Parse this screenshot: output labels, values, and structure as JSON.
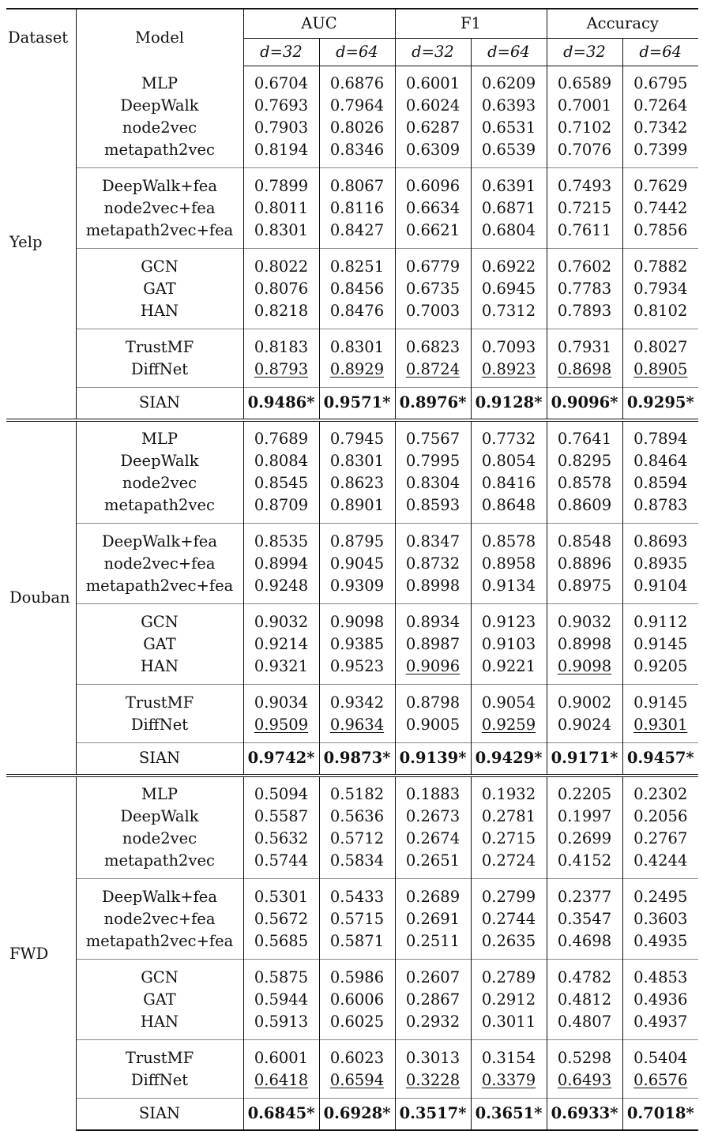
{
  "header": {
    "dataset": "Dataset",
    "model": "Model",
    "metrics": [
      "AUC",
      "F1",
      "Accuracy"
    ],
    "dims": [
      "d=32",
      "d=64",
      "d=32",
      "d=64",
      "d=32",
      "d=64"
    ]
  },
  "datasets": [
    {
      "name": "Yelp",
      "groups": [
        [
          {
            "model": "MLP",
            "values": [
              "0.6704",
              "0.6876",
              "0.6001",
              "0.6209",
              "0.6589",
              "0.6795"
            ],
            "underline": [
              false,
              false,
              false,
              false,
              false,
              false
            ]
          },
          {
            "model": "DeepWalk",
            "values": [
              "0.7693",
              "0.7964",
              "0.6024",
              "0.6393",
              "0.7001",
              "0.7264"
            ],
            "underline": [
              false,
              false,
              false,
              false,
              false,
              false
            ]
          },
          {
            "model": "node2vec",
            "values": [
              "0.7903",
              "0.8026",
              "0.6287",
              "0.6531",
              "0.7102",
              "0.7342"
            ],
            "underline": [
              false,
              false,
              false,
              false,
              false,
              false
            ]
          },
          {
            "model": "metapath2vec",
            "values": [
              "0.8194",
              "0.8346",
              "0.6309",
              "0.6539",
              "0.7076",
              "0.7399"
            ],
            "underline": [
              false,
              false,
              false,
              false,
              false,
              false
            ]
          }
        ],
        [
          {
            "model": "DeepWalk+fea",
            "values": [
              "0.7899",
              "0.8067",
              "0.6096",
              "0.6391",
              "0.7493",
              "0.7629"
            ],
            "underline": [
              false,
              false,
              false,
              false,
              false,
              false
            ]
          },
          {
            "model": "node2vec+fea",
            "values": [
              "0.8011",
              "0.8116",
              "0.6634",
              "0.6871",
              "0.7215",
              "0.7442"
            ],
            "underline": [
              false,
              false,
              false,
              false,
              false,
              false
            ]
          },
          {
            "model": "metapath2vec+fea",
            "values": [
              "0.8301",
              "0.8427",
              "0.6621",
              "0.6804",
              "0.7611",
              "0.7856"
            ],
            "underline": [
              false,
              false,
              false,
              false,
              false,
              false
            ]
          }
        ],
        [
          {
            "model": "GCN",
            "values": [
              "0.8022",
              "0.8251",
              "0.6779",
              "0.6922",
              "0.7602",
              "0.7882"
            ],
            "underline": [
              false,
              false,
              false,
              false,
              false,
              false
            ]
          },
          {
            "model": "GAT",
            "values": [
              "0.8076",
              "0.8456",
              "0.6735",
              "0.6945",
              "0.7783",
              "0.7934"
            ],
            "underline": [
              false,
              false,
              false,
              false,
              false,
              false
            ]
          },
          {
            "model": "HAN",
            "values": [
              "0.8218",
              "0.8476",
              "0.7003",
              "0.7312",
              "0.7893",
              "0.8102"
            ],
            "underline": [
              false,
              false,
              false,
              false,
              false,
              false
            ]
          }
        ],
        [
          {
            "model": "TrustMF",
            "values": [
              "0.8183",
              "0.8301",
              "0.6823",
              "0.7093",
              "0.7931",
              "0.8027"
            ],
            "underline": [
              false,
              false,
              false,
              false,
              false,
              false
            ]
          },
          {
            "model": "DiffNet",
            "values": [
              "0.8793",
              "0.8929",
              "0.8724",
              "0.8923",
              "0.8698",
              "0.8905"
            ],
            "underline": [
              true,
              true,
              true,
              true,
              true,
              true
            ]
          }
        ]
      ],
      "best": {
        "model": "SIAN",
        "values": [
          "0.9486*",
          "0.9571*",
          "0.8976*",
          "0.9128*",
          "0.9096*",
          "0.9295*"
        ]
      }
    },
    {
      "name": "Douban",
      "groups": [
        [
          {
            "model": "MLP",
            "values": [
              "0.7689",
              "0.7945",
              "0.7567",
              "0.7732",
              "0.7641",
              "0.7894"
            ],
            "underline": [
              false,
              false,
              false,
              false,
              false,
              false
            ]
          },
          {
            "model": "DeepWalk",
            "values": [
              "0.8084",
              "0.8301",
              "0.7995",
              "0.8054",
              "0.8295",
              "0.8464"
            ],
            "underline": [
              false,
              false,
              false,
              false,
              false,
              false
            ]
          },
          {
            "model": "node2vec",
            "values": [
              "0.8545",
              "0.8623",
              "0.8304",
              "0.8416",
              "0.8578",
              "0.8594"
            ],
            "underline": [
              false,
              false,
              false,
              false,
              false,
              false
            ]
          },
          {
            "model": "metapath2vec",
            "values": [
              "0.8709",
              "0.8901",
              "0.8593",
              "0.8648",
              "0.8609",
              "0.8783"
            ],
            "underline": [
              false,
              false,
              false,
              false,
              false,
              false
            ]
          }
        ],
        [
          {
            "model": "DeepWalk+fea",
            "values": [
              "0.8535",
              "0.8795",
              "0.8347",
              "0.8578",
              "0.8548",
              "0.8693"
            ],
            "underline": [
              false,
              false,
              false,
              false,
              false,
              false
            ]
          },
          {
            "model": "node2vec+fea",
            "values": [
              "0.8994",
              "0.9045",
              "0.8732",
              "0.8958",
              "0.8896",
              "0.8935"
            ],
            "underline": [
              false,
              false,
              false,
              false,
              false,
              false
            ]
          },
          {
            "model": "metapath2vec+fea",
            "values": [
              "0.9248",
              "0.9309",
              "0.8998",
              "0.9134",
              "0.8975",
              "0.9104"
            ],
            "underline": [
              false,
              false,
              false,
              false,
              false,
              false
            ]
          }
        ],
        [
          {
            "model": "GCN",
            "values": [
              "0.9032",
              "0.9098",
              "0.8934",
              "0.9123",
              "0.9032",
              "0.9112"
            ],
            "underline": [
              false,
              false,
              false,
              false,
              false,
              false
            ]
          },
          {
            "model": "GAT",
            "values": [
              "0.9214",
              "0.9385",
              "0.8987",
              "0.9103",
              "0.8998",
              "0.9145"
            ],
            "underline": [
              false,
              false,
              false,
              false,
              false,
              false
            ]
          },
          {
            "model": "HAN",
            "values": [
              "0.9321",
              "0.9523",
              "0.9096",
              "0.9221",
              "0.9098",
              "0.9205"
            ],
            "underline": [
              false,
              false,
              true,
              false,
              true,
              false
            ]
          }
        ],
        [
          {
            "model": "TrustMF",
            "values": [
              "0.9034",
              "0.9342",
              "0.8798",
              "0.9054",
              "0.9002",
              "0.9145"
            ],
            "underline": [
              false,
              false,
              false,
              false,
              false,
              false
            ]
          },
          {
            "model": "DiffNet",
            "values": [
              "0.9509",
              "0.9634",
              "0.9005",
              "0.9259",
              "0.9024",
              "0.9301"
            ],
            "underline": [
              true,
              true,
              false,
              true,
              false,
              true
            ]
          }
        ]
      ],
      "best": {
        "model": "SIAN",
        "values": [
          "0.9742*",
          "0.9873*",
          "0.9139*",
          "0.9429*",
          "0.9171*",
          "0.9457*"
        ]
      }
    },
    {
      "name": "FWD",
      "groups": [
        [
          {
            "model": "MLP",
            "values": [
              "0.5094",
              "0.5182",
              "0.1883",
              "0.1932",
              "0.2205",
              "0.2302"
            ],
            "underline": [
              false,
              false,
              false,
              false,
              false,
              false
            ]
          },
          {
            "model": "DeepWalk",
            "values": [
              "0.5587",
              "0.5636",
              "0.2673",
              "0.2781",
              "0.1997",
              "0.2056"
            ],
            "underline": [
              false,
              false,
              false,
              false,
              false,
              false
            ]
          },
          {
            "model": "node2vec",
            "values": [
              "0.5632",
              "0.5712",
              "0.2674",
              "0.2715",
              "0.2699",
              "0.2767"
            ],
            "underline": [
              false,
              false,
              false,
              false,
              false,
              false
            ]
          },
          {
            "model": "metapath2vec",
            "values": [
              "0.5744",
              "0.5834",
              "0.2651",
              "0.2724",
              "0.4152",
              "0.4244"
            ],
            "underline": [
              false,
              false,
              false,
              false,
              false,
              false
            ]
          }
        ],
        [
          {
            "model": "DeepWalk+fea",
            "values": [
              "0.5301",
              "0.5433",
              "0.2689",
              "0.2799",
              "0.2377",
              "0.2495"
            ],
            "underline": [
              false,
              false,
              false,
              false,
              false,
              false
            ]
          },
          {
            "model": "node2vec+fea",
            "values": [
              "0.5672",
              "0.5715",
              "0.2691",
              "0.2744",
              "0.3547",
              "0.3603"
            ],
            "underline": [
              false,
              false,
              false,
              false,
              false,
              false
            ]
          },
          {
            "model": "metapath2vec+fea",
            "values": [
              "0.5685",
              "0.5871",
              "0.2511",
              "0.2635",
              "0.4698",
              "0.4935"
            ],
            "underline": [
              false,
              false,
              false,
              false,
              false,
              false
            ]
          }
        ],
        [
          {
            "model": "GCN",
            "values": [
              "0.5875",
              "0.5986",
              "0.2607",
              "0.2789",
              "0.4782",
              "0.4853"
            ],
            "underline": [
              false,
              false,
              false,
              false,
              false,
              false
            ]
          },
          {
            "model": "GAT",
            "values": [
              "0.5944",
              "0.6006",
              "0.2867",
              "0.2912",
              "0.4812",
              "0.4936"
            ],
            "underline": [
              false,
              false,
              false,
              false,
              false,
              false
            ]
          },
          {
            "model": "HAN",
            "values": [
              "0.5913",
              "0.6025",
              "0.2932",
              "0.3011",
              "0.4807",
              "0.4937"
            ],
            "underline": [
              false,
              false,
              false,
              false,
              false,
              false
            ]
          }
        ],
        [
          {
            "model": "TrustMF",
            "values": [
              "0.6001",
              "0.6023",
              "0.3013",
              "0.3154",
              "0.5298",
              "0.5404"
            ],
            "underline": [
              false,
              false,
              false,
              false,
              false,
              false
            ]
          },
          {
            "model": "DiffNet",
            "values": [
              "0.6418",
              "0.6594",
              "0.3228",
              "0.3379",
              "0.6493",
              "0.6576"
            ],
            "underline": [
              true,
              true,
              true,
              true,
              true,
              true
            ]
          }
        ]
      ],
      "best": {
        "model": "SIAN",
        "values": [
          "0.6845*",
          "0.6928*",
          "0.3517*",
          "0.3651*",
          "0.6933*",
          "0.7018*"
        ]
      }
    }
  ]
}
